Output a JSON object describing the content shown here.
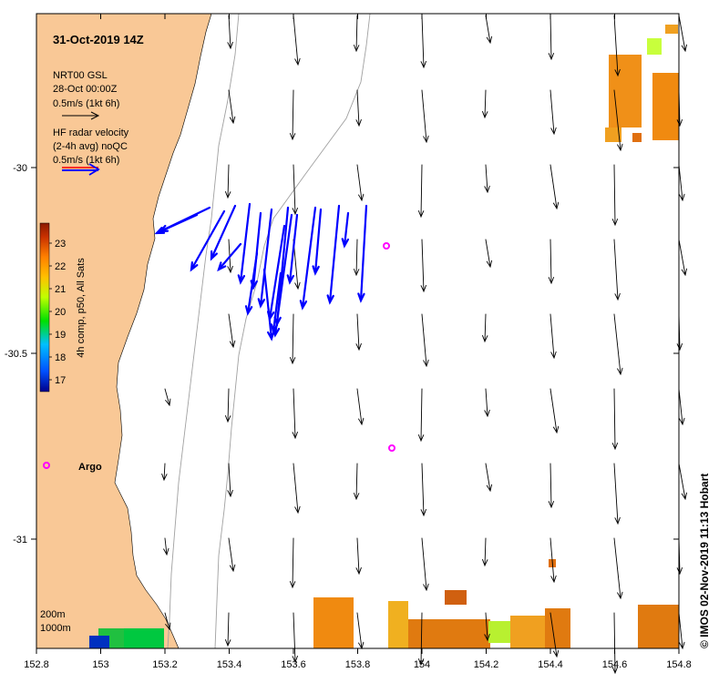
{
  "title": "31-Oct-2019 14Z",
  "model_legend": {
    "line1": "NRT00 GSL",
    "line2": "28-Oct 00:00Z",
    "line3": "0.5m/s (1kt 6h)"
  },
  "radar_legend": {
    "line1": "HF radar velocity",
    "line2": "(2-4h avg) noQC",
    "line3": "0.5m/s (1kt 6h)"
  },
  "colorbar": {
    "label": "4h comp, p50, All Sats",
    "ticks": [
      "23",
      "22",
      "21",
      "20",
      "19",
      "18",
      "17"
    ],
    "stops": [
      "#00008b",
      "#0050ff",
      "#00c0ff",
      "#00e000",
      "#c0ff00",
      "#ffc000",
      "#ff8000",
      "#c83000",
      "#8b1a00"
    ]
  },
  "x_ticks": [
    "152.8",
    "153",
    "153.2",
    "153.4",
    "153.6",
    "153.8",
    "154",
    "154.2",
    "154.4",
    "154.6",
    "154.8"
  ],
  "y_ticks": [
    "-30",
    "-30.5",
    "-31"
  ],
  "argo_label": "Argo",
  "depth_labels": [
    "200m",
    "1000m"
  ],
  "credit": "© IMOS 02-Nov-2019 11:13 Hobart",
  "colors": {
    "land": "#f9c896",
    "radar": "#0000ff",
    "model": "#000000",
    "argo": "#ff00ff",
    "isobath": "#a0a0a0"
  }
}
